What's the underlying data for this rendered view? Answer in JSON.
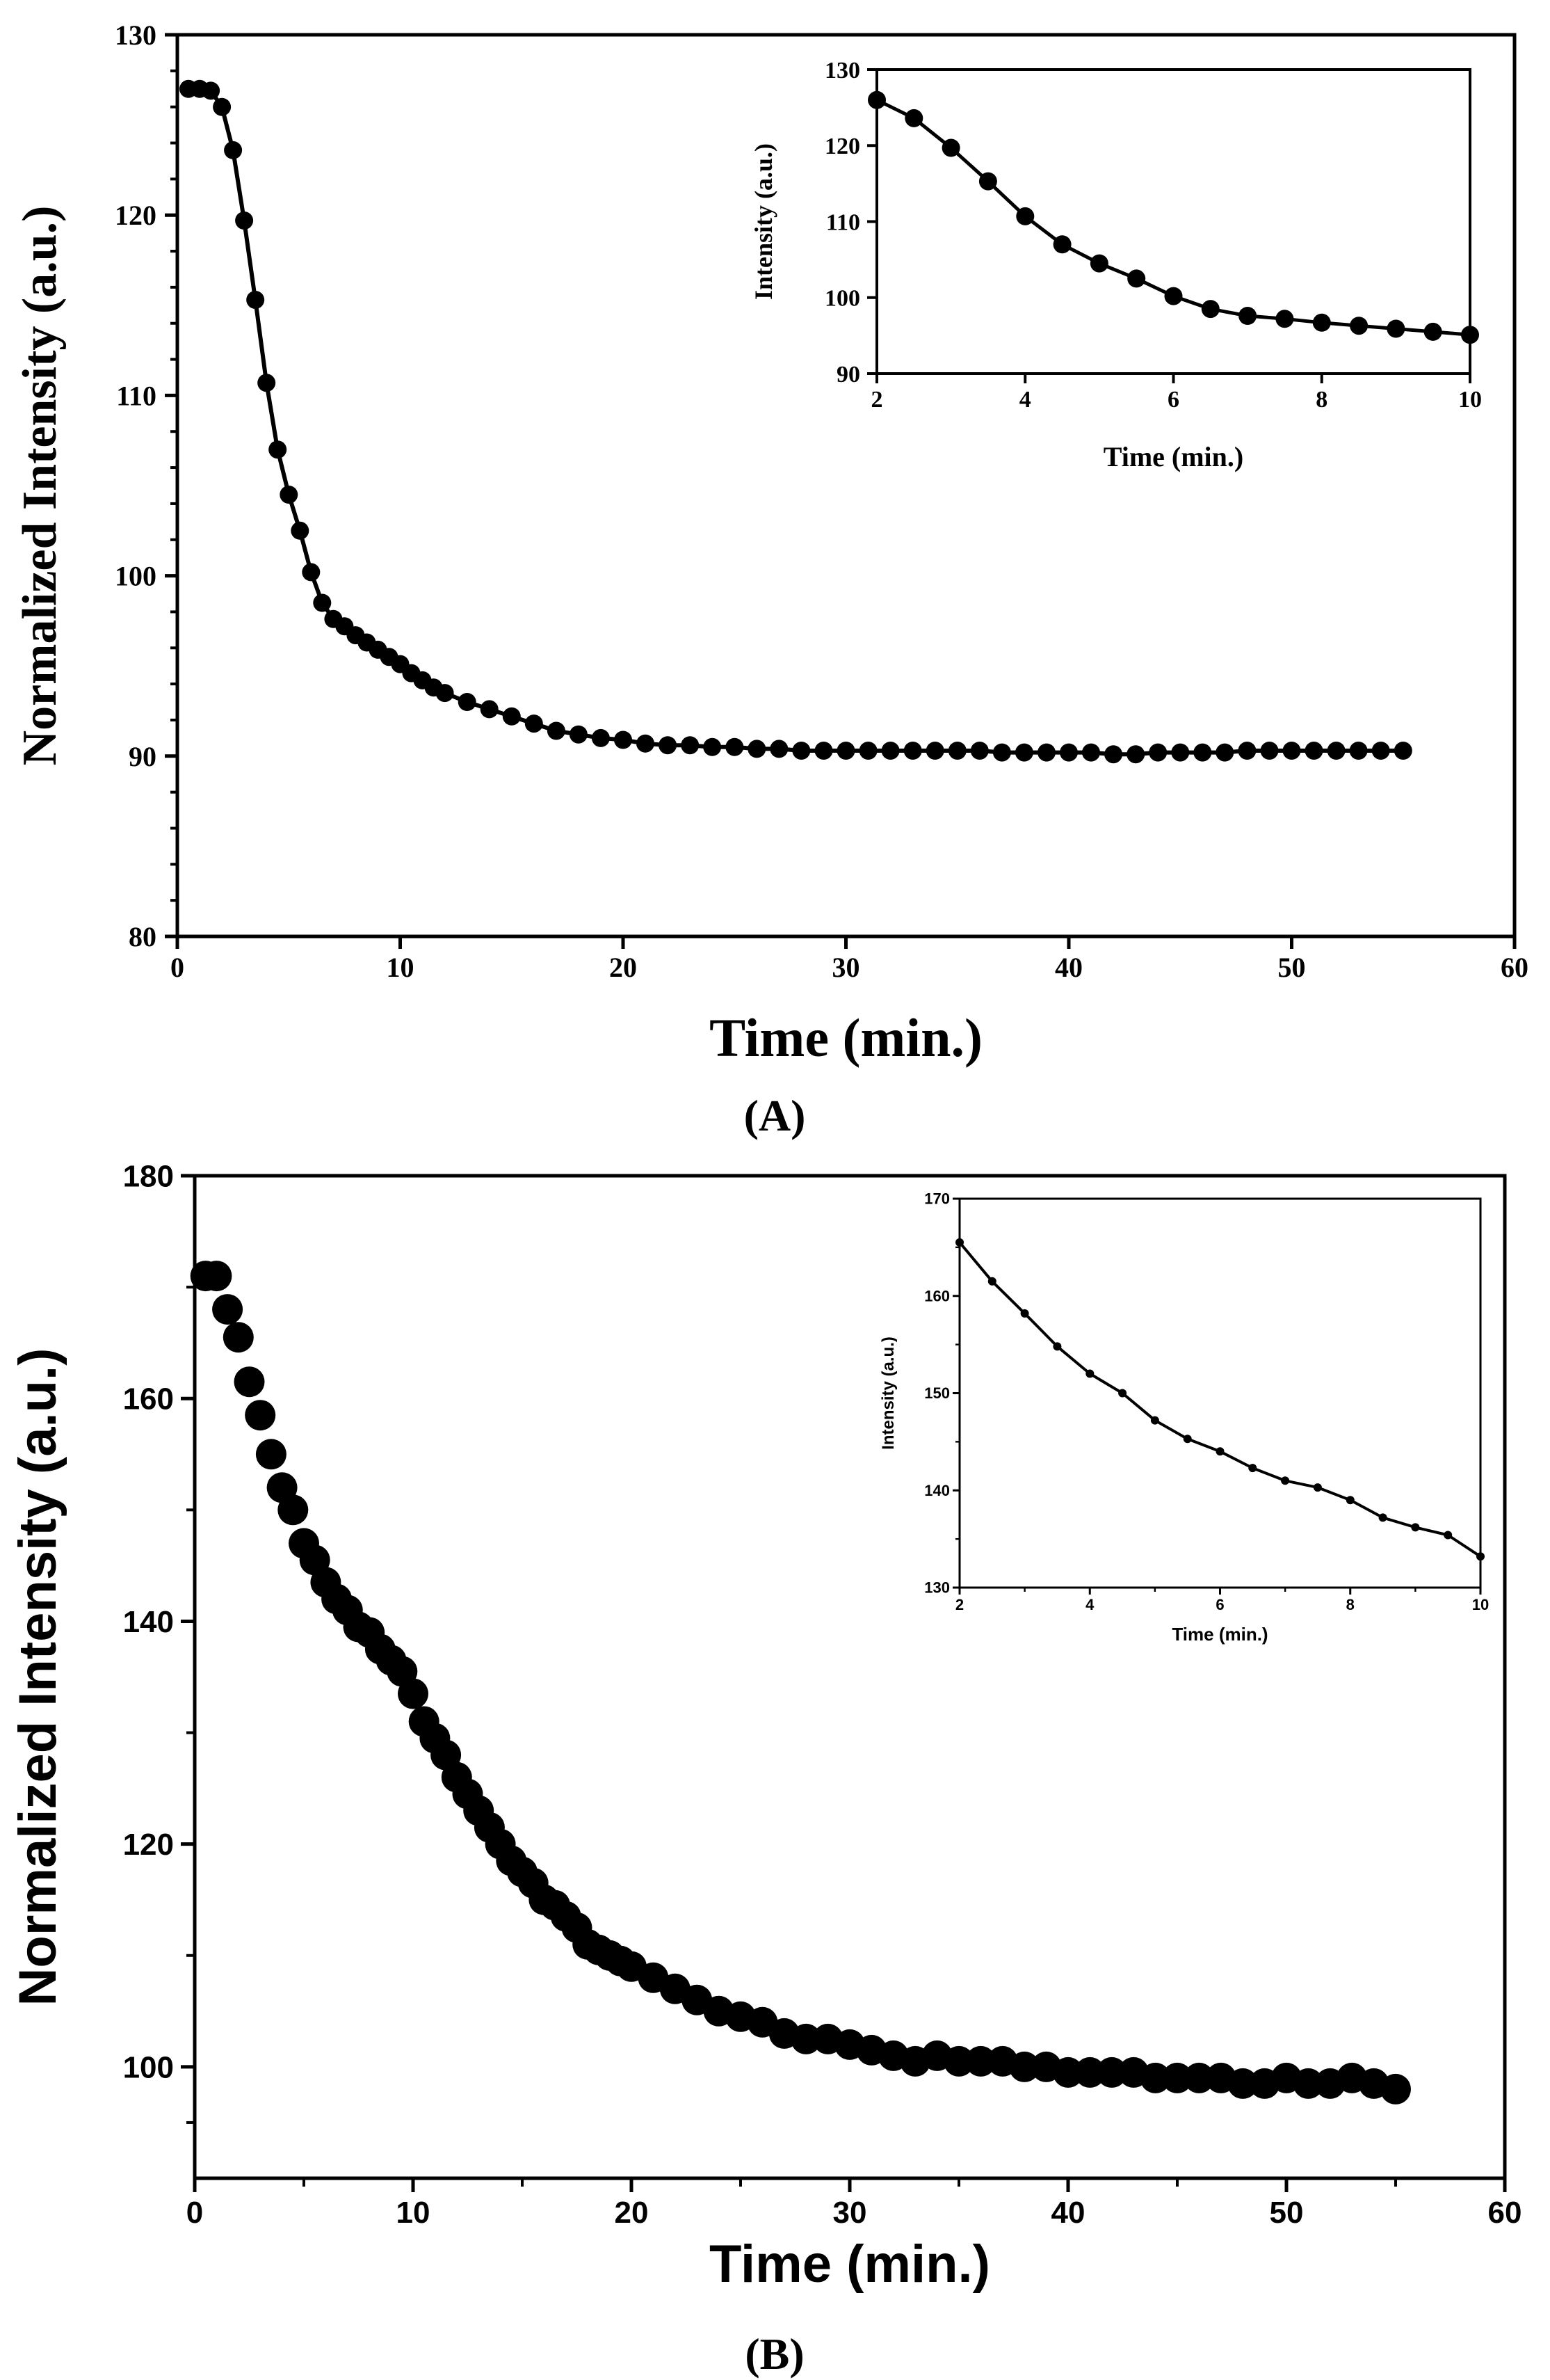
{
  "figure_labels": {
    "a": "(A)",
    "b": "(B)"
  },
  "chart_data": [
    {
      "id": "A-main",
      "panel": "A",
      "type": "line",
      "title": "",
      "xlabel": "Time (min.)",
      "ylabel": "Normalized Intensity (a.u.)",
      "xlim": [
        0,
        60
      ],
      "ylim": [
        80,
        130
      ],
      "xticks": [
        0,
        10,
        20,
        30,
        40,
        50,
        60
      ],
      "yticks": [
        80,
        90,
        100,
        110,
        120,
        130
      ],
      "marker": "circle",
      "line": true,
      "grid": false,
      "series": [
        {
          "name": "Normalized Intensity",
          "x": [
            0.5,
            1.0,
            1.5,
            2.0,
            2.5,
            3.0,
            3.5,
            4.0,
            4.5,
            5.0,
            5.5,
            6.0,
            6.5,
            7.0,
            7.5,
            8.0,
            8.5,
            9.0,
            9.5,
            10.0,
            10.5,
            11.0,
            11.5,
            12.0,
            13.0,
            14.0,
            15.0,
            16.0,
            17.0,
            18.0,
            19.0,
            20.0,
            21.0,
            22.0,
            23.0,
            24.0,
            25.0,
            26.0,
            27.0,
            28.0,
            29.0,
            30.0,
            31.0,
            32.0,
            33.0,
            34.0,
            35.0,
            36.0,
            37.0,
            38.0,
            39.0,
            40.0,
            41.0,
            42.0,
            43.0,
            44.0,
            45.0,
            46.0,
            47.0,
            48.0,
            49.0,
            50.0,
            51.0,
            52.0,
            53.0,
            54.0,
            55.0
          ],
          "y": [
            127.0,
            127.0,
            126.9,
            126.0,
            123.6,
            119.7,
            115.3,
            110.7,
            107.0,
            104.5,
            102.5,
            100.2,
            98.5,
            97.6,
            97.2,
            96.7,
            96.3,
            95.9,
            95.5,
            95.1,
            94.6,
            94.2,
            93.8,
            93.5,
            93.0,
            92.6,
            92.2,
            91.8,
            91.4,
            91.2,
            91.0,
            90.9,
            90.7,
            90.6,
            90.6,
            90.5,
            90.5,
            90.4,
            90.4,
            90.3,
            90.3,
            90.3,
            90.3,
            90.3,
            90.3,
            90.3,
            90.3,
            90.3,
            90.2,
            90.2,
            90.2,
            90.2,
            90.2,
            90.1,
            90.1,
            90.2,
            90.2,
            90.2,
            90.2,
            90.3,
            90.3,
            90.3,
            90.3,
            90.3,
            90.3,
            90.3,
            90.3
          ]
        }
      ]
    },
    {
      "id": "A-inset",
      "panel": "A",
      "type": "line",
      "title": "",
      "xlabel": "Time (min.)",
      "ylabel": "Intensity (a.u.)",
      "xlim": [
        2,
        10
      ],
      "ylim": [
        90,
        130
      ],
      "xticks": [
        2,
        4,
        6,
        8,
        10
      ],
      "yticks": [
        90,
        100,
        110,
        120,
        130
      ],
      "marker": "circle",
      "line": true,
      "grid": false,
      "series": [
        {
          "name": "Intensity",
          "x": [
            2.0,
            2.5,
            3.0,
            3.5,
            4.0,
            4.5,
            5.0,
            5.5,
            6.0,
            6.5,
            7.0,
            7.5,
            8.0,
            8.5,
            9.0,
            9.5,
            10.0
          ],
          "y": [
            126.0,
            123.6,
            119.7,
            115.3,
            110.7,
            107.0,
            104.5,
            102.5,
            100.2,
            98.5,
            97.6,
            97.2,
            96.7,
            96.3,
            95.9,
            95.5,
            95.1
          ]
        }
      ]
    },
    {
      "id": "B-main",
      "panel": "B",
      "type": "scatter",
      "title": "",
      "xlabel": "Time (min.)",
      "ylabel": "Normalized Intensity (a.u.)",
      "xlim": [
        0,
        60
      ],
      "ylim": [
        90,
        180
      ],
      "xticks": [
        0,
        10,
        20,
        30,
        40,
        50,
        60
      ],
      "yticks": [
        100,
        120,
        140,
        160,
        180
      ],
      "marker": "circle",
      "line": false,
      "grid": false,
      "series": [
        {
          "name": "Normalized Intensity",
          "x": [
            0.5,
            1.0,
            1.5,
            2.0,
            2.5,
            3.0,
            3.5,
            4.0,
            4.5,
            5.0,
            5.5,
            6.0,
            6.5,
            7.0,
            7.5,
            8.0,
            8.5,
            9.0,
            9.5,
            10.0,
            10.5,
            11.0,
            11.5,
            12.0,
            12.5,
            13.0,
            13.5,
            14.0,
            14.5,
            15.0,
            15.5,
            16.0,
            16.5,
            17.0,
            17.5,
            18.0,
            18.5,
            19.0,
            19.5,
            20.0,
            21.0,
            22.0,
            23.0,
            24.0,
            25.0,
            26.0,
            27.0,
            28.0,
            29.0,
            30.0,
            31.0,
            32.0,
            33.0,
            34.0,
            35.0,
            36.0,
            37.0,
            38.0,
            39.0,
            40.0,
            41.0,
            42.0,
            43.0,
            44.0,
            45.0,
            46.0,
            47.0,
            48.0,
            49.0,
            50.0,
            51.0,
            52.0,
            53.0,
            54.0,
            55.0
          ],
          "y": [
            171.0,
            171.0,
            168.0,
            165.5,
            161.5,
            158.5,
            155.0,
            152.0,
            150.0,
            147.0,
            145.5,
            143.5,
            142.0,
            141.0,
            139.5,
            139.0,
            137.5,
            136.5,
            135.5,
            133.5,
            131.0,
            129.5,
            128.0,
            126.0,
            124.5,
            123.0,
            121.5,
            120.0,
            118.5,
            117.5,
            116.5,
            115.0,
            114.5,
            113.5,
            112.5,
            111.0,
            110.5,
            110.0,
            109.5,
            109.0,
            108.0,
            107.0,
            106.0,
            105.0,
            104.5,
            104.0,
            103.0,
            102.5,
            102.5,
            102.0,
            101.5,
            101.0,
            100.5,
            101.0,
            100.5,
            100.5,
            100.5,
            100.0,
            100.0,
            99.5,
            99.5,
            99.5,
            99.5,
            99.0,
            99.0,
            99.0,
            99.0,
            98.5,
            98.5,
            99.0,
            98.5,
            98.5,
            99.0,
            98.5,
            98.0
          ]
        }
      ]
    },
    {
      "id": "B-inset",
      "panel": "B",
      "type": "line",
      "title": "",
      "xlabel": "Time (min.)",
      "ylabel": "Intensity (a.u.)",
      "xlim": [
        2,
        10
      ],
      "ylim": [
        130,
        170
      ],
      "xticks": [
        2,
        4,
        6,
        8,
        10
      ],
      "yticks": [
        130,
        140,
        150,
        160,
        170
      ],
      "marker": "circle",
      "line": true,
      "grid": false,
      "series": [
        {
          "name": "Intensity",
          "x": [
            2.0,
            2.5,
            3.0,
            3.5,
            4.0,
            4.5,
            5.0,
            5.5,
            6.0,
            6.5,
            7.0,
            7.5,
            8.0,
            8.5,
            9.0,
            9.5,
            10.0
          ],
          "y": [
            165.5,
            161.5,
            158.2,
            154.8,
            152.0,
            150.0,
            147.2,
            145.3,
            144.0,
            142.3,
            141.0,
            140.3,
            139.0,
            137.2,
            136.2,
            135.4,
            133.2
          ]
        }
      ]
    }
  ]
}
